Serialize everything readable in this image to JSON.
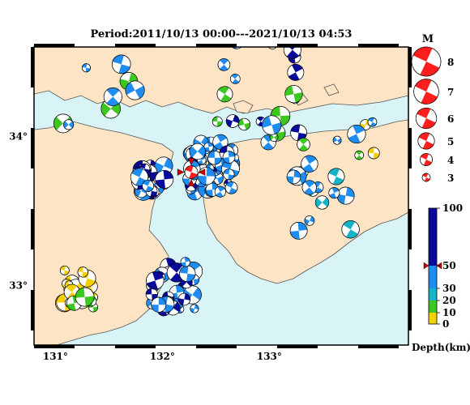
{
  "title": "Period:2011/10/13 00:00---2021/10/13 04:53",
  "map": {
    "sea_color": "#d8f4f6",
    "land_color": "#fce4c4",
    "lon_ticks": [
      {
        "label": "131°",
        "value": 131
      },
      {
        "label": "132°",
        "value": 132
      },
      {
        "label": "133°",
        "value": 133
      }
    ],
    "lat_ticks": [
      {
        "label": "34°",
        "value": 34
      },
      {
        "label": "33°",
        "value": 33
      }
    ],
    "lon_range": [
      130.8,
      134.3
    ],
    "lat_range": [
      32.6,
      34.6
    ]
  },
  "magnitude_legend": {
    "title": "M",
    "items": [
      {
        "label": "8",
        "value": 8
      },
      {
        "label": "7",
        "value": 7
      },
      {
        "label": "6",
        "value": 6
      },
      {
        "label": "5",
        "value": 5
      },
      {
        "label": "4",
        "value": 4
      },
      {
        "label": "3",
        "value": 3
      }
    ]
  },
  "depth_legend": {
    "unit_label": "Depth(km)",
    "ticks": [
      {
        "label": "100",
        "value": 100
      },
      {
        "label": "50",
        "value": 50
      },
      {
        "label": "30",
        "value": 30
      },
      {
        "label": "20",
        "value": 20
      },
      {
        "label": "10",
        "value": 10
      },
      {
        "label": "0",
        "value": 0
      }
    ],
    "bands": [
      {
        "from": 0,
        "to": 10,
        "color": "#f5d000"
      },
      {
        "from": 10,
        "to": 20,
        "color": "#3cc81e"
      },
      {
        "from": 20,
        "to": 30,
        "color": "#14b4c8"
      },
      {
        "from": 30,
        "to": 50,
        "color": "#1e8cf0"
      },
      {
        "from": 50,
        "to": 100,
        "color": "#0a0a9a"
      }
    ],
    "marker_depth": 50
  },
  "highlighted_event": {
    "lon": 132.27,
    "lat": 33.76,
    "depth": 50,
    "mag": 6,
    "color": "#ff1e1e"
  },
  "colors": {
    "deep": "#0a0a9a",
    "mid": "#1e8cf0",
    "cyan": "#14b4c8",
    "green": "#3cc81e",
    "yellow": "#f5d000",
    "red": "#ff1e1e"
  }
}
